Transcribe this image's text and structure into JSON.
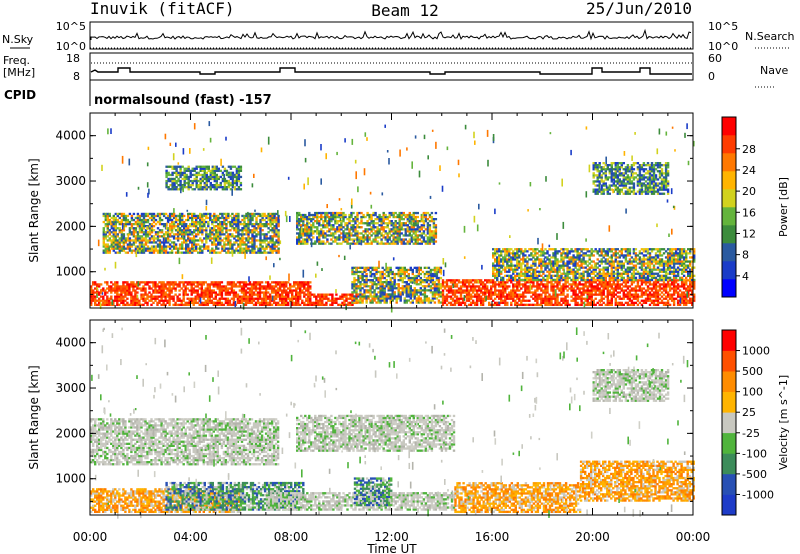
{
  "header": {
    "station": "Inuvik (fitACF)",
    "beam": "Beam 12",
    "date": "25/Jun/2010"
  },
  "aux_panels": {
    "nsky_label": "N.Sky",
    "nsky_ticks": [
      "10^5",
      "10^0"
    ],
    "nsearch_label": "N.Search",
    "nsearch_ticks": [
      "10^5",
      "10^0"
    ],
    "freq_label_1": "Freq.",
    "freq_label_2": "[MHz]",
    "freq_ticks": [
      "18",
      "8"
    ],
    "nave_label": "Nave",
    "nave_ticks": [
      "60",
      "0"
    ],
    "cpid_label": "CPID",
    "cpid_text": "normalsound (fast) -157"
  },
  "chart_data": [
    {
      "type": "heatmap",
      "title": "",
      "xlabel": "",
      "ylabel": "Slant Range [km]",
      "x_ticks": [
        "00:00",
        "04:00",
        "08:00",
        "12:00",
        "16:00",
        "20:00",
        "00:00"
      ],
      "y_ticks": [
        "1000",
        "2000",
        "3000",
        "4000"
      ],
      "ylim": [
        200,
        4500
      ],
      "colorbar": {
        "label": "Power [dB]",
        "ticks": [
          "4",
          "8",
          "12",
          "16",
          "20",
          "24",
          "28"
        ],
        "colors": [
          "#0000ff",
          "#1a3cc8",
          "#2a5aa0",
          "#3c8c3c",
          "#64b43c",
          "#d2d21e",
          "#ffb400",
          "#ff7800",
          "#ff3c00",
          "#ff0000"
        ]
      },
      "bands": [
        {
          "t0": 0,
          "t1": 8.8,
          "r0": 250,
          "r1": 750,
          "level": "high"
        },
        {
          "t0": 8.8,
          "t1": 10.6,
          "r0": 250,
          "r1": 500,
          "level": "high"
        },
        {
          "t0": 10.4,
          "t1": 14,
          "r0": 300,
          "r1": 1100,
          "level": "mid"
        },
        {
          "t0": 14,
          "t1": 24,
          "r0": 250,
          "r1": 800,
          "level": "high"
        },
        {
          "t0": 0.5,
          "t1": 7.5,
          "r0": 1400,
          "r1": 2300,
          "level": "mid"
        },
        {
          "t0": 8.2,
          "t1": 13.8,
          "r0": 1600,
          "r1": 2300,
          "level": "mid"
        },
        {
          "t0": 16,
          "t1": 24,
          "r0": 800,
          "r1": 1500,
          "level": "mid"
        },
        {
          "t0": 3,
          "t1": 6,
          "r0": 2800,
          "r1": 3300,
          "level": "low"
        },
        {
          "t0": 20,
          "t1": 23,
          "r0": 2700,
          "r1": 3400,
          "level": "low"
        }
      ]
    },
    {
      "type": "heatmap",
      "title": "",
      "xlabel": "Time UT",
      "ylabel": "Slant Range [km]",
      "x_ticks": [
        "00:00",
        "04:00",
        "08:00",
        "12:00",
        "16:00",
        "20:00",
        "00:00"
      ],
      "y_ticks": [
        "1000",
        "2000",
        "3000",
        "4000"
      ],
      "ylim": [
        200,
        4500
      ],
      "colorbar": {
        "label": "Velocity [m s^-1]",
        "ticks": [
          "1000",
          "500",
          "100",
          "25",
          "-25",
          "-100",
          "-500",
          "-1000"
        ],
        "colors": [
          "#1e3cc8",
          "#2850b4",
          "#3c8c5a",
          "#50b43c",
          "#c8c8c0",
          "#ffb400",
          "#ff8c00",
          "#ff5000",
          "#ff0000"
        ]
      },
      "bands": [
        {
          "t0": 0,
          "t1": 6,
          "r0": 250,
          "r1": 750,
          "level": "neg"
        },
        {
          "t0": 3,
          "t1": 8.5,
          "r0": 300,
          "r1": 900,
          "level": "pos"
        },
        {
          "t0": 7,
          "t1": 14.5,
          "r0": 300,
          "r1": 700,
          "level": "zero"
        },
        {
          "t0": 14.5,
          "t1": 19.5,
          "r0": 250,
          "r1": 900,
          "level": "neg"
        },
        {
          "t0": 19.5,
          "t1": 24,
          "r0": 500,
          "r1": 1400,
          "level": "neg"
        },
        {
          "t0": 0,
          "t1": 7.5,
          "r0": 1300,
          "r1": 2300,
          "level": "zero"
        },
        {
          "t0": 8.2,
          "t1": 14.5,
          "r0": 1600,
          "r1": 2400,
          "level": "zero"
        },
        {
          "t0": 10.5,
          "t1": 12,
          "r0": 400,
          "r1": 1000,
          "level": "pos"
        },
        {
          "t0": 20,
          "t1": 23,
          "r0": 2700,
          "r1": 3400,
          "level": "zero"
        }
      ]
    }
  ]
}
